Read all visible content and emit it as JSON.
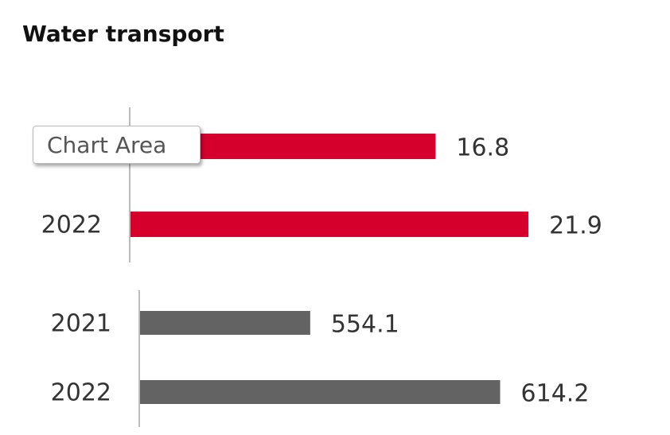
{
  "title": "Water transport",
  "tooltip": "Chart Area",
  "chart_data": [
    {
      "type": "bar",
      "orientation": "horizontal",
      "categories": [
        null,
        "2022"
      ],
      "values": [
        16.8,
        21.9
      ],
      "color": "#d5002b",
      "xlim": [
        0,
        25
      ]
    },
    {
      "type": "bar",
      "orientation": "horizontal",
      "categories": [
        "2021",
        "2022"
      ],
      "values": [
        554.1,
        614.2
      ],
      "color": "#636363",
      "xlim": [
        500,
        640
      ]
    }
  ]
}
